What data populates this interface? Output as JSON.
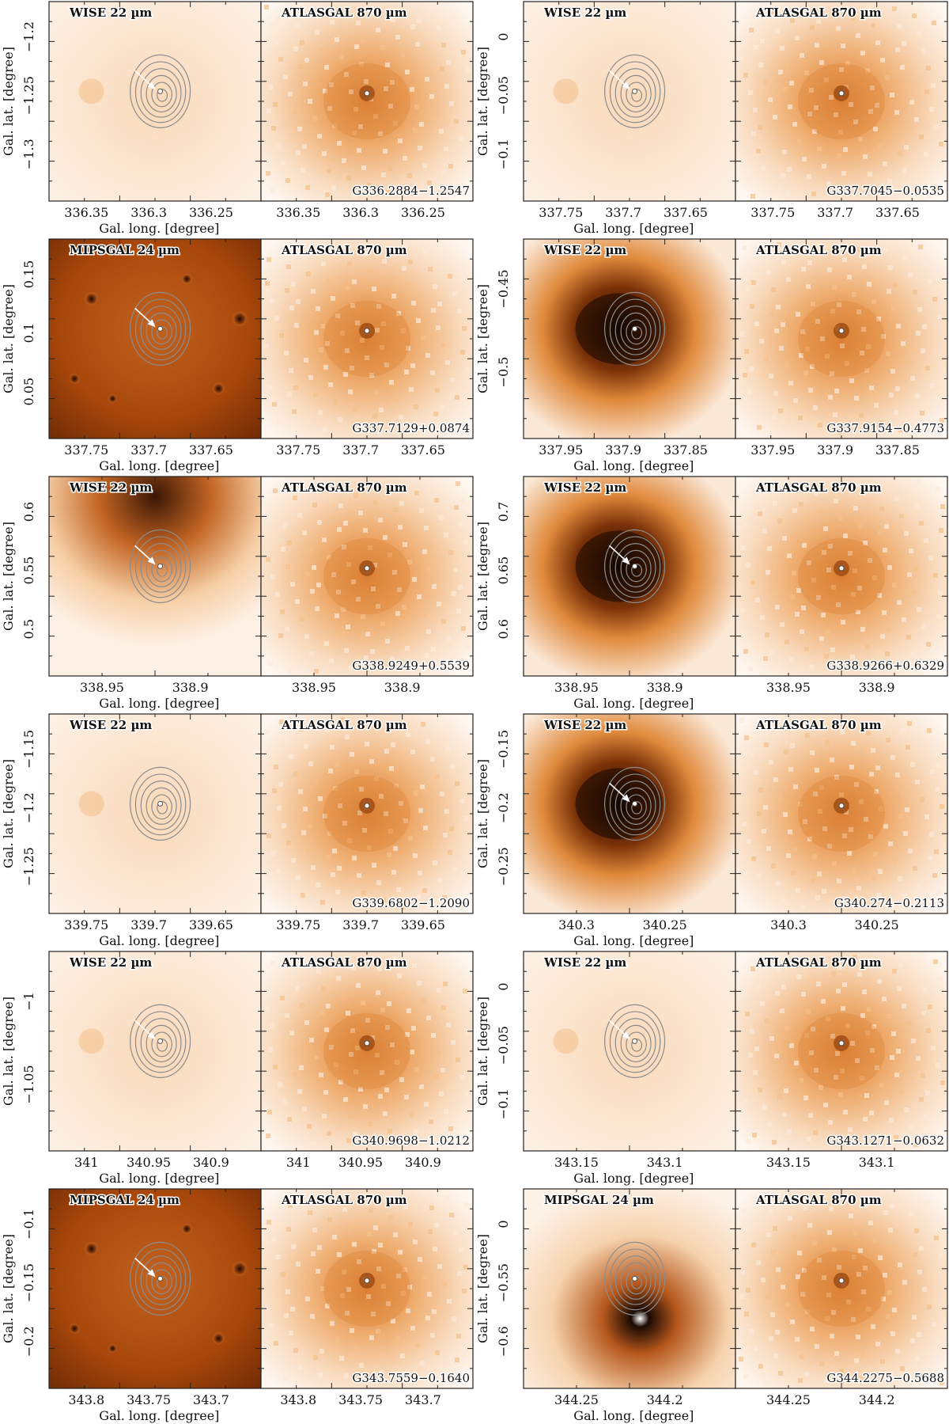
{
  "figure": {
    "x_axis_label": "Gal. long. [degree]",
    "y_axis_label": "Gal. lat. [degree]",
    "colors": {
      "hot": "#a8470b",
      "mid": "#e08a3c",
      "warm": "#f4c08a",
      "pale": "#fbe9d8",
      "contour": "#8c8c8c"
    },
    "panels": [
      {
        "id": "G336.2884-1.2547",
        "ir_label": "WISE 22 µm",
        "submm_label": "ATLASGAL 870 µm",
        "source": "G336.2884−1.2547",
        "x_ticks": [
          "336.35",
          "336.3",
          "336.25"
        ],
        "y_ticks": [
          "−1.2",
          "−1.25",
          "−1.3"
        ],
        "ir_bg": "pale",
        "show_x_label": true,
        "show_arrow": true
      },
      {
        "id": "G337.7045-0.0535",
        "ir_label": "WISE 22 µm",
        "submm_label": "ATLASGAL 870 µm",
        "source": "G337.7045−0.0535",
        "x_ticks": [
          "337.75",
          "337.7",
          "337.65"
        ],
        "y_ticks": [
          "0",
          "−0.05",
          "−0.1"
        ],
        "ir_bg": "pale",
        "show_x_label": true,
        "show_arrow": true
      },
      {
        "id": "G337.7129+0.0874",
        "ir_label": "MIPSGAL 24 µm",
        "submm_label": "ATLASGAL 870 µm",
        "source": "G337.7129+0.0874",
        "x_ticks": [
          "337.75",
          "337.7",
          "337.65"
        ],
        "y_ticks": [
          "0.15",
          "0.1",
          "0.05"
        ],
        "ir_bg": "hot",
        "show_x_label": true,
        "show_arrow": true
      },
      {
        "id": "G337.9154-0.4773",
        "ir_label": "WISE 22 µm",
        "submm_label": "ATLASGAL 870 µm",
        "source": "G337.9154−0.4773",
        "x_ticks": [
          "337.95",
          "337.9",
          "337.85"
        ],
        "y_ticks": [
          "−0.45",
          "−0.5"
        ],
        "ir_bg": "bright",
        "show_x_label": true,
        "show_arrow": false
      },
      {
        "id": "G338.9249+0.5539",
        "ir_label": "WISE 22 µm",
        "submm_label": "ATLASGAL 870 µm",
        "source": "G338.9249+0.5539",
        "x_ticks": [
          "338.95",
          "338.9"
        ],
        "y_ticks": [
          "0.6",
          "0.55",
          "0.5"
        ],
        "ir_bg": "upper",
        "show_x_label": true,
        "show_arrow": true
      },
      {
        "id": "G338.9266+0.6329",
        "ir_label": "WISE 22 µm",
        "submm_label": "ATLASGAL 870 µm",
        "source": "G338.9266+0.6329",
        "x_ticks": [
          "338.95",
          "338.9"
        ],
        "y_ticks": [
          "0.7",
          "0.65",
          "0.6"
        ],
        "ir_bg": "bright",
        "show_x_label": true,
        "show_arrow": true
      },
      {
        "id": "G339.6802-1.2090",
        "ir_label": "WISE 22 µm",
        "submm_label": "ATLASGAL 870 µm",
        "source": "G339.6802−1.2090",
        "x_ticks": [
          "339.75",
          "339.7",
          "339.65"
        ],
        "y_ticks": [
          "−1.15",
          "−1.2",
          "−1.25"
        ],
        "ir_bg": "pale",
        "show_x_label": true,
        "show_arrow": false
      },
      {
        "id": "G340.274-0.2113",
        "ir_label": "WISE 22 µm",
        "submm_label": "ATLASGAL 870 µm",
        "source": "G340.274−0.2113",
        "x_ticks": [
          "340.3",
          "340.25"
        ],
        "y_ticks": [
          "−0.15",
          "−0.2",
          "−0.25"
        ],
        "ir_bg": "bright",
        "show_x_label": true,
        "show_arrow": true
      },
      {
        "id": "G340.9698-1.0212",
        "ir_label": "WISE 22 µm",
        "submm_label": "ATLASGAL 870 µm",
        "source": "G340.9698−1.0212",
        "x_ticks": [
          "341",
          "340.95",
          "340.9"
        ],
        "y_ticks": [
          "−1",
          "−1.05"
        ],
        "ir_bg": "pale",
        "show_x_label": true,
        "show_arrow": true
      },
      {
        "id": "G343.1271-0.0632",
        "ir_label": "WISE 22 µm",
        "submm_label": "ATLASGAL 870 µm",
        "source": "G343.1271−0.0632",
        "x_ticks": [
          "343.15",
          "343.1"
        ],
        "y_ticks": [
          "0",
          "−0.05",
          "−0.1"
        ],
        "ir_bg": "pale",
        "show_x_label": true,
        "show_arrow": true
      },
      {
        "id": "G343.7559-0.1640",
        "ir_label": "MIPSGAL 24 µm",
        "submm_label": "ATLASGAL 870 µm",
        "source": "G343.7559−0.1640",
        "x_ticks": [
          "343.8",
          "343.75",
          "343.7"
        ],
        "y_ticks": [
          "−0.1",
          "−0.15",
          "−0.2"
        ],
        "ir_bg": "hot",
        "show_x_label": true,
        "show_arrow": true
      },
      {
        "id": "G344.2275-0.5688",
        "ir_label": "MIPSGAL 24 µm",
        "submm_label": "ATLASGAL 870 µm",
        "source": "G344.2275−0.5688",
        "x_ticks": [
          "344.25",
          "344.2"
        ],
        "y_ticks": [
          "0",
          "−0.55",
          "−0.6"
        ],
        "ir_bg": "whitecore",
        "show_x_label": true,
        "show_arrow": false
      }
    ]
  }
}
